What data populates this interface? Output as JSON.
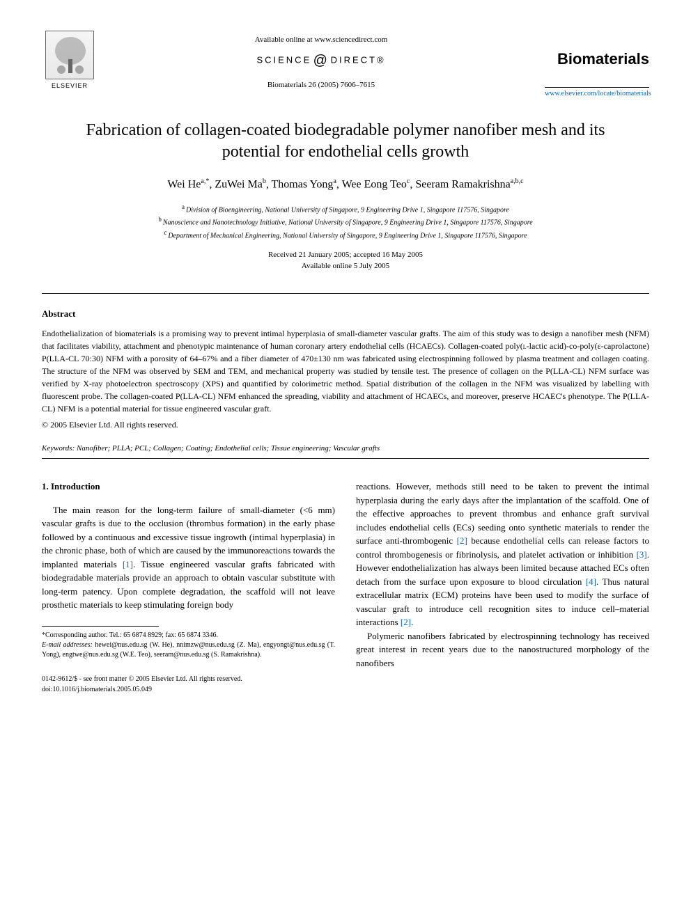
{
  "header": {
    "available_online": "Available online at www.sciencedirect.com",
    "science_direct": "SCIENCE",
    "science_direct2": "DIRECT®",
    "journal_ref": "Biomaterials 26 (2005) 7606–7615",
    "elsevier": "ELSEVIER",
    "journal_name": "Biomaterials",
    "journal_url": "www.elsevier.com/locate/biomaterials"
  },
  "title": "Fabrication of collagen-coated biodegradable polymer nanofiber mesh and its potential for endothelial cells growth",
  "authors": [
    {
      "name": "Wei He",
      "affil": "a,",
      "corr": "*"
    },
    {
      "name": "ZuWei Ma",
      "affil": "b"
    },
    {
      "name": "Thomas Yong",
      "affil": "a"
    },
    {
      "name": "Wee Eong Teo",
      "affil": "c"
    },
    {
      "name": "Seeram Ramakrishna",
      "affil": "a,b,c"
    }
  ],
  "affiliations": {
    "a": "Division of Bioengineering, National University of Singapore, 9 Engineering Drive 1, Singapore 117576, Singapore",
    "b": "Nanoscience and Nanotechnology Initiative, National University of Singapore, 9 Engineering Drive 1, Singapore 117576, Singapore",
    "c": "Department of Mechanical Engineering, National University of Singapore, 9 Engineering Drive 1, Singapore 117576, Singapore"
  },
  "dates": {
    "received": "Received 21 January 2005; accepted 16 May 2005",
    "online": "Available online 5 July 2005"
  },
  "abstract": {
    "heading": "Abstract",
    "text": "Endothelialization of biomaterials is a promising way to prevent intimal hyperplasia of small-diameter vascular grafts. The aim of this study was to design a nanofiber mesh (NFM) that facilitates viability, attachment and phenotypic maintenance of human coronary artery endothelial cells (HCAECs). Collagen-coated poly(L-lactic acid)-co-poly(ε-caprolactone) P(LLA-CL 70:30) NFM with a porosity of 64–67% and a fiber diameter of 470±130 nm was fabricated using electrospinning followed by plasma treatment and collagen coating. The structure of the NFM was observed by SEM and TEM, and mechanical property was studied by tensile test. The presence of collagen on the P(LLA-CL) NFM surface was verified by X-ray photoelectron spectroscopy (XPS) and quantified by colorimetric method. Spatial distribution of the collagen in the NFM was visualized by labelling with fluorescent probe. The collagen-coated P(LLA-CL) NFM enhanced the spreading, viability and attachment of HCAECs, and moreover, preserve HCAEC's phenotype. The P(LLA-CL) NFM is a potential material for tissue engineered vascular graft.",
    "copyright": "© 2005 Elsevier Ltd. All rights reserved."
  },
  "keywords": {
    "label": "Keywords:",
    "text": "Nanofiber; PLLA; PCL; Collagen; Coating; Endothelial cells; Tissue engineering; Vascular grafts"
  },
  "introduction": {
    "heading": "1. Introduction",
    "col1_p1": "The main reason for the long-term failure of small-diameter (<6 mm) vascular grafts is due to the occlusion (thrombus formation) in the early phase followed by a continuous and excessive tissue ingrowth (intimal hyperplasia) in the chronic phase, both of which are caused by the immunoreactions towards the implanted materials [1]. Tissue engineered vascular grafts fabricated with biodegradable materials provide an approach to obtain vascular substitute with long-term patency. Upon complete degradation, the scaffold will not leave prosthetic materials to keep stimulating foreign body",
    "col2_p1": "reactions. However, methods still need to be taken to prevent the intimal hyperplasia during the early days after the implantation of the scaffold. One of the effective approaches to prevent thrombus and enhance graft survival includes endothelial cells (ECs) seeding onto synthetic materials to render the surface anti-thrombogenic [2] because endothelial cells can release factors to control thrombogenesis or fibrinolysis, and platelet activation or inhibition [3]. However endothelialization has always been limited because attached ECs often detach from the surface upon exposure to blood circulation [4]. Thus natural extracellular matrix (ECM) proteins have been used to modify the surface of vascular graft to introduce cell recognition sites to induce cell–material interactions [2].",
    "col2_p2": "Polymeric nanofibers fabricated by electrospinning technology has received great interest in recent years due to the nanostructured morphology of the nanofibers"
  },
  "footnote": {
    "corresponding": "*Corresponding author. Tel.: 65 6874 8929; fax: 65 6874 3346.",
    "emails_label": "E-mail addresses:",
    "emails": "hewei@nus.edu.sg (W. He), nnimzw@nus.edu.sg (Z. Ma), engyongt@nus.edu.sg (T. Yong), engtwe@nus.edu.sg (W.E. Teo), seeram@nus.edu.sg (S. Ramakrishna)."
  },
  "footer": {
    "issn": "0142-9612/$ - see front matter © 2005 Elsevier Ltd. All rights reserved.",
    "doi": "doi:10.1016/j.biomaterials.2005.05.049"
  },
  "colors": {
    "link": "#0066cc",
    "text": "#000000",
    "background": "#ffffff"
  }
}
